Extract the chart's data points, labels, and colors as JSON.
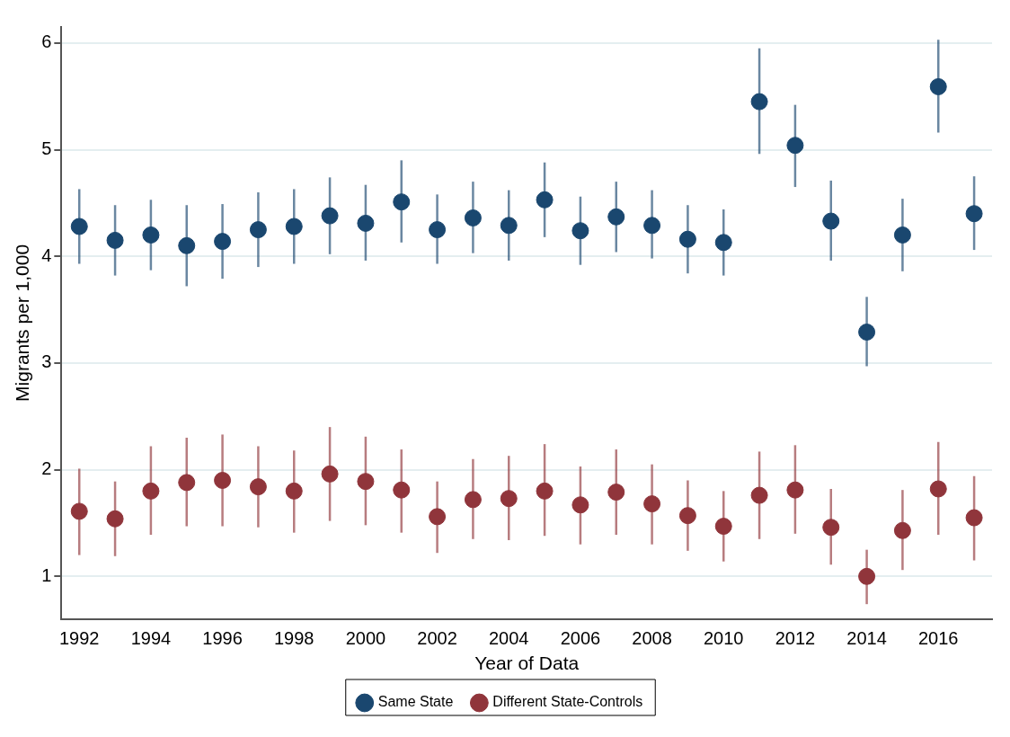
{
  "chart_data": {
    "type": "scatter",
    "xlabel": "Year of Data",
    "ylabel": "Migrants per 1,000",
    "x": [
      1992,
      1993,
      1994,
      1995,
      1996,
      1997,
      1998,
      1999,
      2000,
      2001,
      2002,
      2003,
      2004,
      2005,
      2006,
      2007,
      2008,
      2009,
      2010,
      2011,
      2012,
      2013,
      2014,
      2015,
      2016,
      2017
    ],
    "series": [
      {
        "name": "Same State",
        "color": "#1a476f",
        "values": [
          4.28,
          4.15,
          4.2,
          4.1,
          4.14,
          4.25,
          4.28,
          4.38,
          4.31,
          4.51,
          4.25,
          4.36,
          4.29,
          4.53,
          4.24,
          4.37,
          4.29,
          4.16,
          4.13,
          5.45,
          5.04,
          4.33,
          3.29,
          4.2,
          5.59,
          4.4
        ],
        "errors": [
          [
            3.93,
            4.63
          ],
          [
            3.82,
            4.48
          ],
          [
            3.87,
            4.53
          ],
          [
            3.72,
            4.48
          ],
          [
            3.79,
            4.49
          ],
          [
            3.9,
            4.6
          ],
          [
            3.93,
            4.63
          ],
          [
            4.02,
            4.74
          ],
          [
            3.96,
            4.67
          ],
          [
            4.13,
            4.9
          ],
          [
            3.93,
            4.58
          ],
          [
            4.03,
            4.7
          ],
          [
            3.96,
            4.62
          ],
          [
            4.18,
            4.88
          ],
          [
            3.92,
            4.56
          ],
          [
            4.04,
            4.7
          ],
          [
            3.98,
            4.62
          ],
          [
            3.84,
            4.48
          ],
          [
            3.82,
            4.44
          ],
          [
            4.96,
            5.95
          ],
          [
            4.65,
            5.42
          ],
          [
            3.96,
            4.71
          ],
          [
            2.97,
            3.62
          ],
          [
            3.86,
            4.54
          ],
          [
            5.16,
            6.03
          ],
          [
            4.06,
            4.75
          ]
        ]
      },
      {
        "name": "Different State-Controls",
        "color": "#90353b",
        "values": [
          1.61,
          1.54,
          1.8,
          1.88,
          1.9,
          1.84,
          1.8,
          1.96,
          1.89,
          1.81,
          1.56,
          1.72,
          1.73,
          1.8,
          1.67,
          1.79,
          1.68,
          1.57,
          1.47,
          1.76,
          1.81,
          1.46,
          1.0,
          1.43,
          1.82,
          1.55
        ],
        "errors": [
          [
            1.2,
            2.01
          ],
          [
            1.19,
            1.89
          ],
          [
            1.39,
            2.22
          ],
          [
            1.47,
            2.3
          ],
          [
            1.47,
            2.33
          ],
          [
            1.46,
            2.22
          ],
          [
            1.41,
            2.18
          ],
          [
            1.52,
            2.4
          ],
          [
            1.48,
            2.31
          ],
          [
            1.41,
            2.19
          ],
          [
            1.22,
            1.89
          ],
          [
            1.35,
            2.1
          ],
          [
            1.34,
            2.13
          ],
          [
            1.38,
            2.24
          ],
          [
            1.3,
            2.03
          ],
          [
            1.39,
            2.19
          ],
          [
            1.3,
            2.05
          ],
          [
            1.24,
            1.9
          ],
          [
            1.14,
            1.8
          ],
          [
            1.35,
            2.17
          ],
          [
            1.4,
            2.23
          ],
          [
            1.11,
            1.82
          ],
          [
            0.74,
            1.25
          ],
          [
            1.06,
            1.81
          ],
          [
            1.39,
            2.26
          ],
          [
            1.15,
            1.94
          ]
        ]
      }
    ],
    "xlim": [
      1991.5,
      2017.5
    ],
    "xticks": [
      1992,
      1994,
      1996,
      1998,
      2000,
      2002,
      2004,
      2006,
      2008,
      2010,
      2012,
      2014,
      2016
    ],
    "ylim": [
      0.6,
      6.15
    ],
    "yticks": [
      1,
      2,
      3,
      4,
      5,
      6
    ],
    "grid": "y",
    "legend": "bottom",
    "marker": "circle"
  }
}
